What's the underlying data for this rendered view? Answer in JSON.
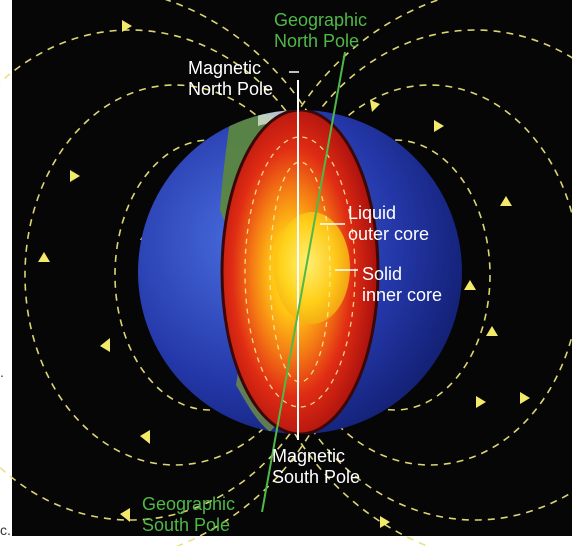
{
  "labels": {
    "geo_north": [
      "Geographic",
      "North Pole"
    ],
    "mag_north": [
      "Magnetic",
      "North Pole"
    ],
    "liquid_core": [
      "Liquid",
      "outer core"
    ],
    "solid_core": [
      "Solid",
      "inner core"
    ],
    "mag_south": [
      "Magnetic",
      "South Pole"
    ],
    "geo_south": [
      "Geographic",
      "South Pole"
    ]
  },
  "stray_marks": {
    "dot": ".",
    "c": "c."
  },
  "colors": {
    "background": "#060606",
    "field_line": "#e9e07a",
    "geographic_label": "#4fb846",
    "magnetic_label": "#ffffff",
    "earth_surface": "#2c3fb0",
    "outer_core": "#d8251a",
    "inner_core": "#ffd21a"
  },
  "icons": [
    "field-arrow-icon"
  ]
}
